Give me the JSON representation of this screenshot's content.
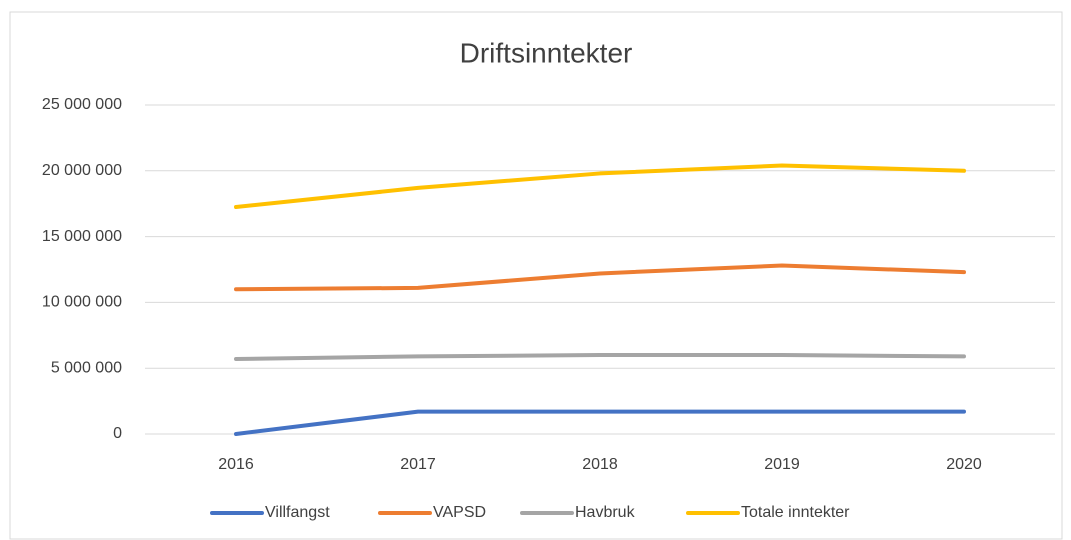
{
  "chart_data": {
    "type": "line",
    "title": "Driftsinntekter",
    "categories": [
      "2016",
      "2017",
      "2018",
      "2019",
      "2020"
    ],
    "series": [
      {
        "name": "Villfangst",
        "color": "#4472c4",
        "values": [
          0,
          1700000,
          1700000,
          1700000,
          1700000
        ]
      },
      {
        "name": "VAPSD",
        "color": "#ed7d31",
        "values": [
          11000000,
          11100000,
          12200000,
          12800000,
          12300000
        ]
      },
      {
        "name": "Havbruk",
        "color": "#a5a5a5",
        "values": [
          5700000,
          5900000,
          6000000,
          6000000,
          5900000
        ]
      },
      {
        "name": "Totale inntekter",
        "color": "#ffc000",
        "values": [
          17250000,
          18700000,
          19800000,
          20400000,
          20000000
        ]
      }
    ],
    "ylim": [
      0,
      25000000
    ],
    "yticks": [
      0,
      {
        "value": 5000000,
        "label": "5 000 000"
      },
      {
        "value": 10000000,
        "label": "10 000 000"
      },
      {
        "value": 15000000,
        "label": "15 000 000"
      },
      {
        "value": 20000000,
        "label": "20 000 000"
      },
      {
        "value": 25000000,
        "label": "25 000 000"
      }
    ],
    "grid": true,
    "legend": "bottom"
  }
}
